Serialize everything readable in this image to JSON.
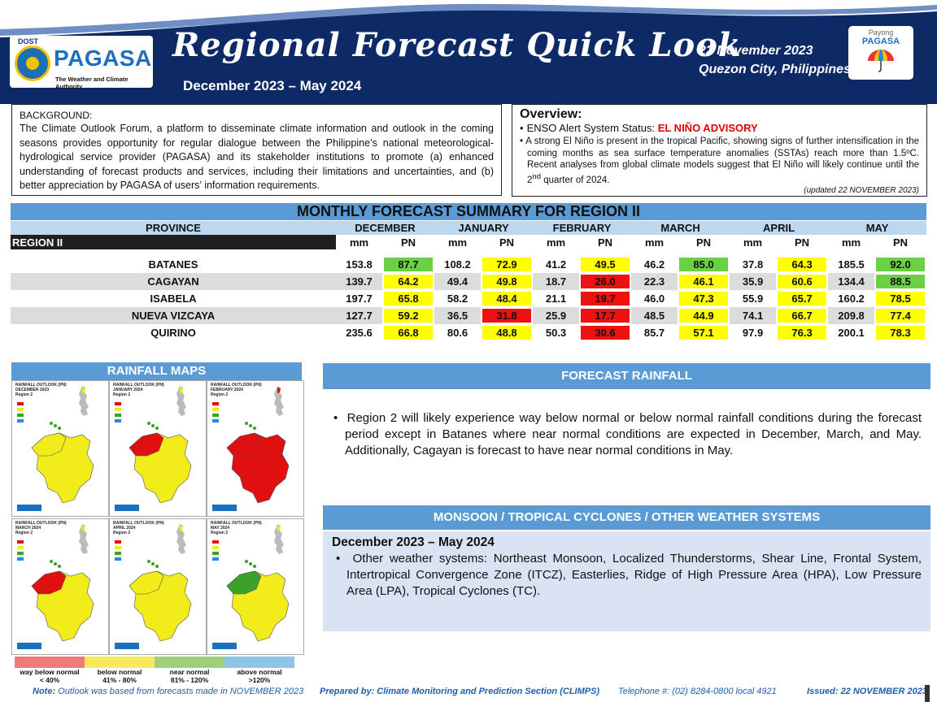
{
  "header": {
    "logo_agency": "DOST",
    "logo_name": "PAGASA",
    "logo_tagline": "The Weather and Climate Authority",
    "title": "Regional Forecast Quick Look",
    "period": "December 2023 – May  2024",
    "date": "22 November 2023",
    "place": "Quezon City, Philippines",
    "payong_line1": "Payong",
    "payong_line2": "PAGASA"
  },
  "background": {
    "title": "BACKGROUND:",
    "text": "The Climate Outlook Forum, a platform to disseminate climate information and outlook in the coming seasons provides opportunity for regular dialogue between the Philippine’s national meteorological-hydrological service provider (PAGASA) and its stakeholder institutions to promote (a) enhanced understanding of forecast products and services, including their limitations and uncertainties, and (b) better appreciation by PAGASA of users’ information requirements."
  },
  "overview": {
    "title": "Overview:",
    "enso_label": "ENSO Alert  System Status:",
    "enso_status": "EL NIÑO ADVISORY",
    "text_before_sup": "A strong El Niño is present in the tropical Pacific, showing signs of further intensification in the coming months as sea surface temperature anomalies (SSTAs) reach more than 1.5ºC. Recent analyses from global climate models suggest that El Niño will likely continue  until the 2",
    "text_sup": "nd",
    "text_after_sup": " quarter of 2024.",
    "updated": "(updated 22 NOVEMBER 2023)"
  },
  "table": {
    "title": "MONTHLY FORECAST SUMMARY FOR REGION II",
    "province_header": "PROVINCE",
    "region_label": "REGION II",
    "months": [
      "DECEMBER",
      "JANUARY",
      "FEBRUARY",
      "MARCH",
      "APRIL",
      "MAY"
    ],
    "sub_mm": "mm",
    "sub_pn": "PN",
    "colors": {
      "yellow": "#ffff00",
      "green": "#6dd044",
      "red": "#ef1010"
    },
    "rows": [
      {
        "province": "BATANES",
        "cells": [
          {
            "mm": "153.8",
            "pn": "87.7",
            "cat": "grn"
          },
          {
            "mm": "108.2",
            "pn": "72.9",
            "cat": "yel"
          },
          {
            "mm": "41.2",
            "pn": "49.5",
            "cat": "yel"
          },
          {
            "mm": "46.2",
            "pn": "85.0",
            "cat": "grn"
          },
          {
            "mm": "37.8",
            "pn": "64.3",
            "cat": "yel"
          },
          {
            "mm": "185.5",
            "pn": "92.0",
            "cat": "grn"
          }
        ]
      },
      {
        "province": "CAGAYAN",
        "cells": [
          {
            "mm": "139.7",
            "pn": "64.2",
            "cat": "yel"
          },
          {
            "mm": "49.4",
            "pn": "49.8",
            "cat": "yel"
          },
          {
            "mm": "18.7",
            "pn": "26.0",
            "cat": "red"
          },
          {
            "mm": "22.3",
            "pn": "46.1",
            "cat": "yel"
          },
          {
            "mm": "35.9",
            "pn": "60.6",
            "cat": "yel"
          },
          {
            "mm": "134.4",
            "pn": "88.5",
            "cat": "grn"
          }
        ]
      },
      {
        "province": "ISABELA",
        "cells": [
          {
            "mm": "197.7",
            "pn": "65.8",
            "cat": "yel"
          },
          {
            "mm": "58.2",
            "pn": "48.4",
            "cat": "yel"
          },
          {
            "mm": "21.1",
            "pn": "19.7",
            "cat": "red"
          },
          {
            "mm": "46.0",
            "pn": "47.3",
            "cat": "yel"
          },
          {
            "mm": "55.9",
            "pn": "65.7",
            "cat": "yel"
          },
          {
            "mm": "160.2",
            "pn": "78.5",
            "cat": "yel"
          }
        ]
      },
      {
        "province": "NUEVA VIZCAYA",
        "cells": [
          {
            "mm": "127.7",
            "pn": "59.2",
            "cat": "yel"
          },
          {
            "mm": "36.5",
            "pn": "31.8",
            "cat": "red"
          },
          {
            "mm": "25.9",
            "pn": "17.7",
            "cat": "red"
          },
          {
            "mm": "48.5",
            "pn": "44.9",
            "cat": "yel"
          },
          {
            "mm": "74.1",
            "pn": "66.7",
            "cat": "yel"
          },
          {
            "mm": "209.8",
            "pn": "77.4",
            "cat": "yel"
          }
        ]
      },
      {
        "province": "QUIRINO",
        "cells": [
          {
            "mm": "235.6",
            "pn": "66.8",
            "cat": "yel"
          },
          {
            "mm": "80.6",
            "pn": "48.8",
            "cat": "yel"
          },
          {
            "mm": "50.3",
            "pn": "30.6",
            "cat": "red"
          },
          {
            "mm": "85.7",
            "pn": "57.1",
            "cat": "yel"
          },
          {
            "mm": "97.9",
            "pn": "76.3",
            "cat": "yel"
          },
          {
            "mm": "200.1",
            "pn": "78.3",
            "cat": "yel"
          }
        ]
      }
    ]
  },
  "maps": {
    "header": "RAINFALL MAPS",
    "panels": [
      {
        "caption": "RAINFALL OUTLOOK (PN)\nDECEMBER 2023\nRegion 2",
        "fill": "#f2ec1a",
        "accent": "#f2ec1a"
      },
      {
        "caption": "RAINFALL OUTLOOK (PN)\nJANUARY 2024\nRegion 2",
        "fill": "#f2ec1a",
        "accent": "#e01010"
      },
      {
        "caption": "RAINFALL OUTLOOK (PN)\nFEBRUARY 2024\nRegion 2",
        "fill": "#e01010",
        "accent": "#e01010"
      },
      {
        "caption": "RAINFALL OUTLOOK (PN)\nMARCH 2024\nRegion 2",
        "fill": "#f2ec1a",
        "accent": "#e01010"
      },
      {
        "caption": "RAINFALL OUTLOOK (PN)\nAPRIL 2024\nRegion 2",
        "fill": "#f2ec1a",
        "accent": "#f2ec1a"
      },
      {
        "caption": "RAINFALL OUTLOOK (PN)\nMAY 2024\nRegion 2",
        "fill": "#f2ec1a",
        "accent": "#3aa12a"
      }
    ],
    "legend": [
      {
        "label1": "way below normal",
        "label2": "< 40%",
        "color": "#f07a7a"
      },
      {
        "label1": "below normal",
        "label2": "41% - 80%",
        "color": "#f6ea5a"
      },
      {
        "label1": "near normal",
        "label2": "81% - 120%",
        "color": "#9fcf7a"
      },
      {
        "label1": "above normal",
        "label2": ">120%",
        "color": "#8ec3ea"
      }
    ]
  },
  "forecast": {
    "header": "FORECAST RAINFALL",
    "text": "Region 2 will likely experience way below normal or below normal rainfall conditions during the forecast period except in Batanes where near normal conditions are expected in December, March, and May. Additionally,  Cagayan is forecast to have near normal conditions in May."
  },
  "monsoon": {
    "header": "MONSOON  / TROPICAL CYCLONES / OTHER WEATHER SYSTEMS",
    "period": "December 2023 – May  2024",
    "text": "Other weather systems: Northeast Monsoon, Localized Thunderstorms, Shear Line, Frontal System, Intertropical Convergence Zone (ITCZ), Easterlies, Ridge of High Pressure Area (HPA), Low Pressure Area (LPA), Tropical Cyclones (TC)."
  },
  "footer": {
    "note_label": "Note:",
    "note_text": "Outlook was based from forecasts made in NOVEMBER 2023",
    "prepared": "Prepared by: Climate Monitoring and Prediction Section (CLIMPS)",
    "telephone": "Telephone #: (02) 8284-0800 local 4921",
    "issued": "Issued: 22 NOVEMBER 2023"
  }
}
